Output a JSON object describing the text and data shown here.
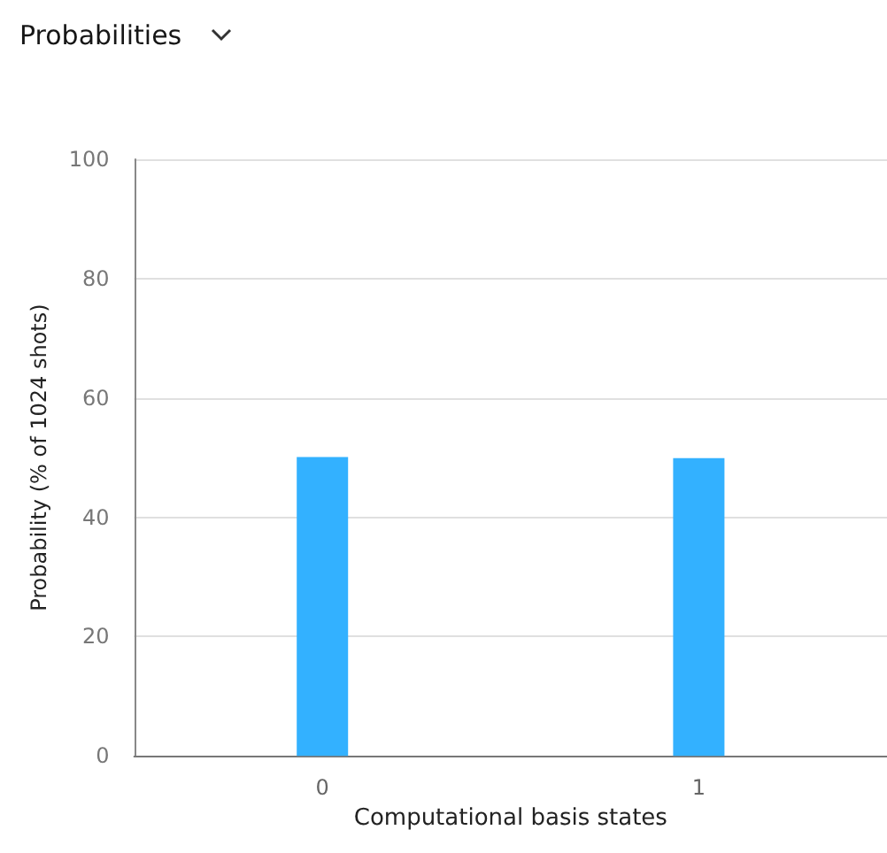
{
  "chart_data": {
    "type": "bar",
    "title": "Probabilities",
    "xlabel": "Computational basis states",
    "ylabel": "Probability (% of 1024 shots)",
    "categories": [
      "0",
      "1"
    ],
    "values": [
      50.1,
      49.9
    ],
    "color": "#33b1ff",
    "ylim": [
      0,
      100
    ],
    "yticks": [
      0,
      20,
      40,
      60,
      80,
      100
    ],
    "grid": "y"
  }
}
